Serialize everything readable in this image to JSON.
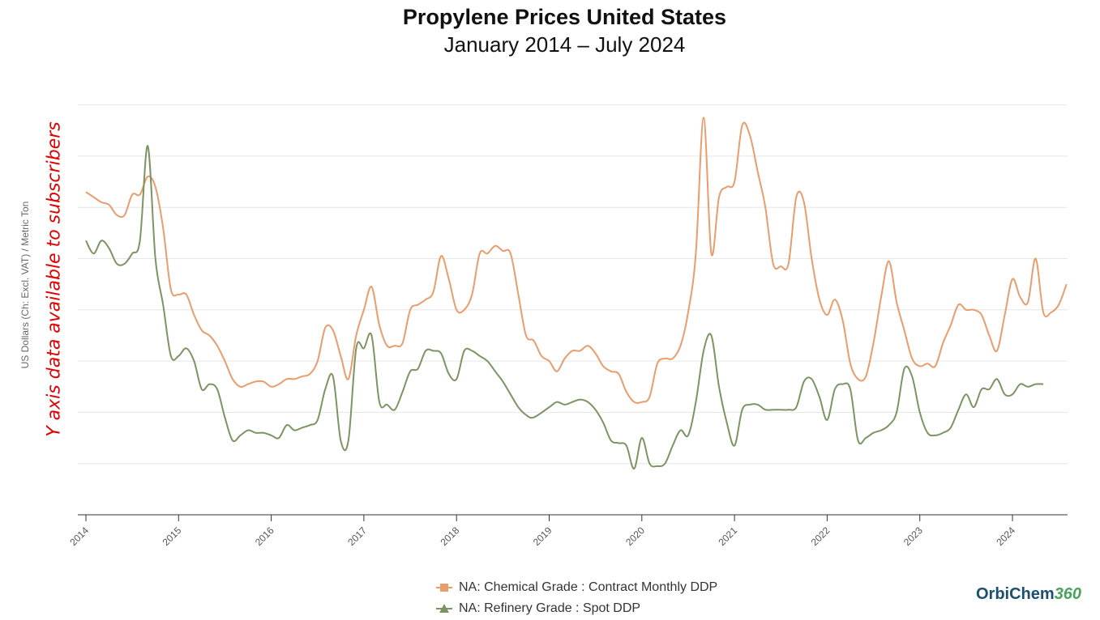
{
  "chart_data": {
    "type": "line",
    "title": "Propylene Prices United States",
    "subtitle": "January 2014 – July 2024",
    "ylabel": "US Dollars (Ch: Excl. VAT) / Metric Ton",
    "y_note": "Y axis data available to subscribers",
    "xlim": [
      2014,
      2024.583
    ],
    "ylim": [
      0,
      8
    ],
    "y_scale_note": "unlabeled index units (0-8 gridlines)",
    "x_ticks": [
      "2014",
      "2015",
      "2016",
      "2017",
      "2018",
      "2019",
      "2020",
      "2021",
      "2022",
      "2023",
      "2024"
    ],
    "series": [
      {
        "name": "NA: Chemical Grade : Contract Monthly DDP",
        "color": "#e99c6c",
        "marker": "square",
        "points": [
          [
            2014,
            6.3
          ],
          [
            2014.083,
            6.2
          ],
          [
            2014.167,
            6.1
          ],
          [
            2014.25,
            6.05
          ],
          [
            2014.333,
            5.85
          ],
          [
            2014.417,
            5.85
          ],
          [
            2014.5,
            6.25
          ],
          [
            2014.583,
            6.25
          ],
          [
            2014.667,
            6.6
          ],
          [
            2014.75,
            6.4
          ],
          [
            2014.833,
            5.6
          ],
          [
            2014.917,
            4.4
          ],
          [
            2015,
            4.3
          ],
          [
            2015.083,
            4.3
          ],
          [
            2015.167,
            3.9
          ],
          [
            2015.25,
            3.6
          ],
          [
            2015.333,
            3.5
          ],
          [
            2015.417,
            3.3
          ],
          [
            2015.5,
            3.0
          ],
          [
            2015.583,
            2.65
          ],
          [
            2015.667,
            2.5
          ],
          [
            2015.75,
            2.55
          ],
          [
            2015.833,
            2.6
          ],
          [
            2015.917,
            2.6
          ],
          [
            2016,
            2.5
          ],
          [
            2016.083,
            2.55
          ],
          [
            2016.167,
            2.65
          ],
          [
            2016.25,
            2.65
          ],
          [
            2016.333,
            2.7
          ],
          [
            2016.417,
            2.75
          ],
          [
            2016.5,
            3.0
          ],
          [
            2016.583,
            3.65
          ],
          [
            2016.667,
            3.6
          ],
          [
            2016.75,
            3.1
          ],
          [
            2016.833,
            2.65
          ],
          [
            2016.917,
            3.5
          ],
          [
            2017,
            4.0
          ],
          [
            2017.083,
            4.45
          ],
          [
            2017.167,
            3.7
          ],
          [
            2017.25,
            3.3
          ],
          [
            2017.333,
            3.3
          ],
          [
            2017.417,
            3.35
          ],
          [
            2017.5,
            4.0
          ],
          [
            2017.583,
            4.1
          ],
          [
            2017.667,
            4.2
          ],
          [
            2017.75,
            4.35
          ],
          [
            2017.833,
            5.05
          ],
          [
            2017.917,
            4.6
          ],
          [
            2018,
            4.0
          ],
          [
            2018.083,
            4.0
          ],
          [
            2018.167,
            4.3
          ],
          [
            2018.25,
            5.1
          ],
          [
            2018.333,
            5.1
          ],
          [
            2018.417,
            5.25
          ],
          [
            2018.5,
            5.15
          ],
          [
            2018.583,
            5.1
          ],
          [
            2018.667,
            4.3
          ],
          [
            2018.75,
            3.5
          ],
          [
            2018.833,
            3.4
          ],
          [
            2018.917,
            3.1
          ],
          [
            2019,
            3.0
          ],
          [
            2019.083,
            2.8
          ],
          [
            2019.167,
            3.05
          ],
          [
            2019.25,
            3.2
          ],
          [
            2019.333,
            3.2
          ],
          [
            2019.417,
            3.3
          ],
          [
            2019.5,
            3.15
          ],
          [
            2019.583,
            2.9
          ],
          [
            2019.667,
            2.8
          ],
          [
            2019.75,
            2.75
          ],
          [
            2019.833,
            2.4
          ],
          [
            2019.917,
            2.2
          ],
          [
            2020,
            2.2
          ],
          [
            2020.083,
            2.3
          ],
          [
            2020.167,
            2.95
          ],
          [
            2020.25,
            3.05
          ],
          [
            2020.333,
            3.05
          ],
          [
            2020.417,
            3.3
          ],
          [
            2020.5,
            3.95
          ],
          [
            2020.583,
            5.1
          ],
          [
            2020.667,
            7.75
          ],
          [
            2020.75,
            5.1
          ],
          [
            2020.833,
            6.2
          ],
          [
            2020.917,
            6.4
          ],
          [
            2021,
            6.5
          ],
          [
            2021.083,
            7.6
          ],
          [
            2021.167,
            7.4
          ],
          [
            2021.25,
            6.7
          ],
          [
            2021.333,
            6.0
          ],
          [
            2021.417,
            4.9
          ],
          [
            2021.5,
            4.85
          ],
          [
            2021.583,
            4.9
          ],
          [
            2021.667,
            6.2
          ],
          [
            2021.75,
            6.1
          ],
          [
            2021.833,
            5.0
          ],
          [
            2021.917,
            4.2
          ],
          [
            2022,
            3.9
          ],
          [
            2022.083,
            4.2
          ],
          [
            2022.167,
            3.8
          ],
          [
            2022.25,
            2.95
          ],
          [
            2022.333,
            2.65
          ],
          [
            2022.417,
            2.7
          ],
          [
            2022.5,
            3.35
          ],
          [
            2022.583,
            4.25
          ],
          [
            2022.667,
            4.95
          ],
          [
            2022.75,
            4.15
          ],
          [
            2022.833,
            3.6
          ],
          [
            2022.917,
            3.05
          ],
          [
            2023,
            2.9
          ],
          [
            2023.083,
            2.95
          ],
          [
            2023.167,
            2.9
          ],
          [
            2023.25,
            3.35
          ],
          [
            2023.333,
            3.7
          ],
          [
            2023.417,
            4.1
          ],
          [
            2023.5,
            4.0
          ],
          [
            2023.583,
            4.0
          ],
          [
            2023.667,
            3.9
          ],
          [
            2023.75,
            3.5
          ],
          [
            2023.833,
            3.2
          ],
          [
            2023.917,
            3.9
          ],
          [
            2024,
            4.6
          ],
          [
            2024.083,
            4.25
          ],
          [
            2024.167,
            4.15
          ],
          [
            2024.25,
            5.0
          ],
          [
            2024.333,
            3.95
          ],
          [
            2024.417,
            3.95
          ],
          [
            2024.5,
            4.1
          ],
          [
            2024.583,
            4.5
          ]
        ]
      },
      {
        "name": "NA: Refinery Grade : Spot DDP",
        "color": "#7b9463",
        "marker": "triangle",
        "points": [
          [
            2014,
            5.35
          ],
          [
            2014.083,
            5.1
          ],
          [
            2014.167,
            5.35
          ],
          [
            2014.25,
            5.2
          ],
          [
            2014.333,
            4.9
          ],
          [
            2014.417,
            4.9
          ],
          [
            2014.5,
            5.1
          ],
          [
            2014.583,
            5.35
          ],
          [
            2014.667,
            7.2
          ],
          [
            2014.75,
            5.0
          ],
          [
            2014.833,
            4.1
          ],
          [
            2014.917,
            3.1
          ],
          [
            2015,
            3.1
          ],
          [
            2015.083,
            3.25
          ],
          [
            2015.167,
            3.0
          ],
          [
            2015.25,
            2.45
          ],
          [
            2015.333,
            2.55
          ],
          [
            2015.417,
            2.45
          ],
          [
            2015.5,
            1.9
          ],
          [
            2015.583,
            1.45
          ],
          [
            2015.667,
            1.55
          ],
          [
            2015.75,
            1.65
          ],
          [
            2015.833,
            1.6
          ],
          [
            2015.917,
            1.6
          ],
          [
            2016,
            1.55
          ],
          [
            2016.083,
            1.5
          ],
          [
            2016.167,
            1.75
          ],
          [
            2016.25,
            1.65
          ],
          [
            2016.333,
            1.7
          ],
          [
            2016.417,
            1.75
          ],
          [
            2016.5,
            1.85
          ],
          [
            2016.583,
            2.45
          ],
          [
            2016.667,
            2.7
          ],
          [
            2016.75,
            1.45
          ],
          [
            2016.833,
            1.45
          ],
          [
            2016.917,
            3.25
          ],
          [
            2017,
            3.25
          ],
          [
            2017.083,
            3.5
          ],
          [
            2017.167,
            2.2
          ],
          [
            2017.25,
            2.15
          ],
          [
            2017.333,
            2.05
          ],
          [
            2017.417,
            2.4
          ],
          [
            2017.5,
            2.8
          ],
          [
            2017.583,
            2.85
          ],
          [
            2017.667,
            3.2
          ],
          [
            2017.75,
            3.2
          ],
          [
            2017.833,
            3.15
          ],
          [
            2017.917,
            2.75
          ],
          [
            2018,
            2.65
          ],
          [
            2018.083,
            3.2
          ],
          [
            2018.167,
            3.2
          ],
          [
            2018.25,
            3.1
          ],
          [
            2018.333,
            3.0
          ],
          [
            2018.417,
            2.8
          ],
          [
            2018.5,
            2.6
          ],
          [
            2018.583,
            2.35
          ],
          [
            2018.667,
            2.1
          ],
          [
            2018.75,
            1.95
          ],
          [
            2018.833,
            1.9
          ],
          [
            2019,
            2.1
          ],
          [
            2019.083,
            2.2
          ],
          [
            2019.167,
            2.15
          ],
          [
            2019.25,
            2.2
          ],
          [
            2019.333,
            2.25
          ],
          [
            2019.417,
            2.2
          ],
          [
            2019.5,
            2.05
          ],
          [
            2019.583,
            1.8
          ],
          [
            2019.667,
            1.45
          ],
          [
            2019.75,
            1.4
          ],
          [
            2019.833,
            1.35
          ],
          [
            2019.917,
            0.9
          ],
          [
            2020,
            1.5
          ],
          [
            2020.083,
            1.0
          ],
          [
            2020.167,
            0.95
          ],
          [
            2020.25,
            1.0
          ],
          [
            2020.333,
            1.35
          ],
          [
            2020.417,
            1.65
          ],
          [
            2020.5,
            1.55
          ],
          [
            2020.583,
            2.2
          ],
          [
            2020.667,
            3.2
          ],
          [
            2020.75,
            3.5
          ],
          [
            2020.833,
            2.5
          ],
          [
            2020.917,
            1.8
          ],
          [
            2021,
            1.35
          ],
          [
            2021.083,
            2.05
          ],
          [
            2021.167,
            2.15
          ],
          [
            2021.25,
            2.15
          ],
          [
            2021.333,
            2.05
          ],
          [
            2021.417,
            2.05
          ],
          [
            2021.5,
            2.05
          ],
          [
            2021.583,
            2.05
          ],
          [
            2021.667,
            2.1
          ],
          [
            2021.75,
            2.6
          ],
          [
            2021.833,
            2.65
          ],
          [
            2021.917,
            2.3
          ],
          [
            2022,
            1.85
          ],
          [
            2022.083,
            2.45
          ],
          [
            2022.167,
            2.55
          ],
          [
            2022.25,
            2.45
          ],
          [
            2022.333,
            1.45
          ],
          [
            2022.417,
            1.5
          ],
          [
            2022.5,
            1.6
          ],
          [
            2022.583,
            1.65
          ],
          [
            2022.667,
            1.75
          ],
          [
            2022.75,
            2.0
          ],
          [
            2022.833,
            2.85
          ],
          [
            2022.917,
            2.7
          ],
          [
            2023,
            2.0
          ],
          [
            2023.083,
            1.6
          ],
          [
            2023.167,
            1.55
          ],
          [
            2023.25,
            1.6
          ],
          [
            2023.333,
            1.7
          ],
          [
            2023.417,
            2.05
          ],
          [
            2023.5,
            2.35
          ],
          [
            2023.583,
            2.1
          ],
          [
            2023.667,
            2.45
          ],
          [
            2023.75,
            2.45
          ],
          [
            2023.833,
            2.65
          ],
          [
            2023.917,
            2.35
          ],
          [
            2024,
            2.35
          ],
          [
            2024.083,
            2.55
          ],
          [
            2024.167,
            2.5
          ],
          [
            2024.25,
            2.55
          ],
          [
            2024.333,
            2.55
          ]
        ]
      }
    ],
    "legend_position": "bottom"
  },
  "brand": {
    "logo_text_a": "OrbiChem",
    "logo_text_b": "360"
  }
}
